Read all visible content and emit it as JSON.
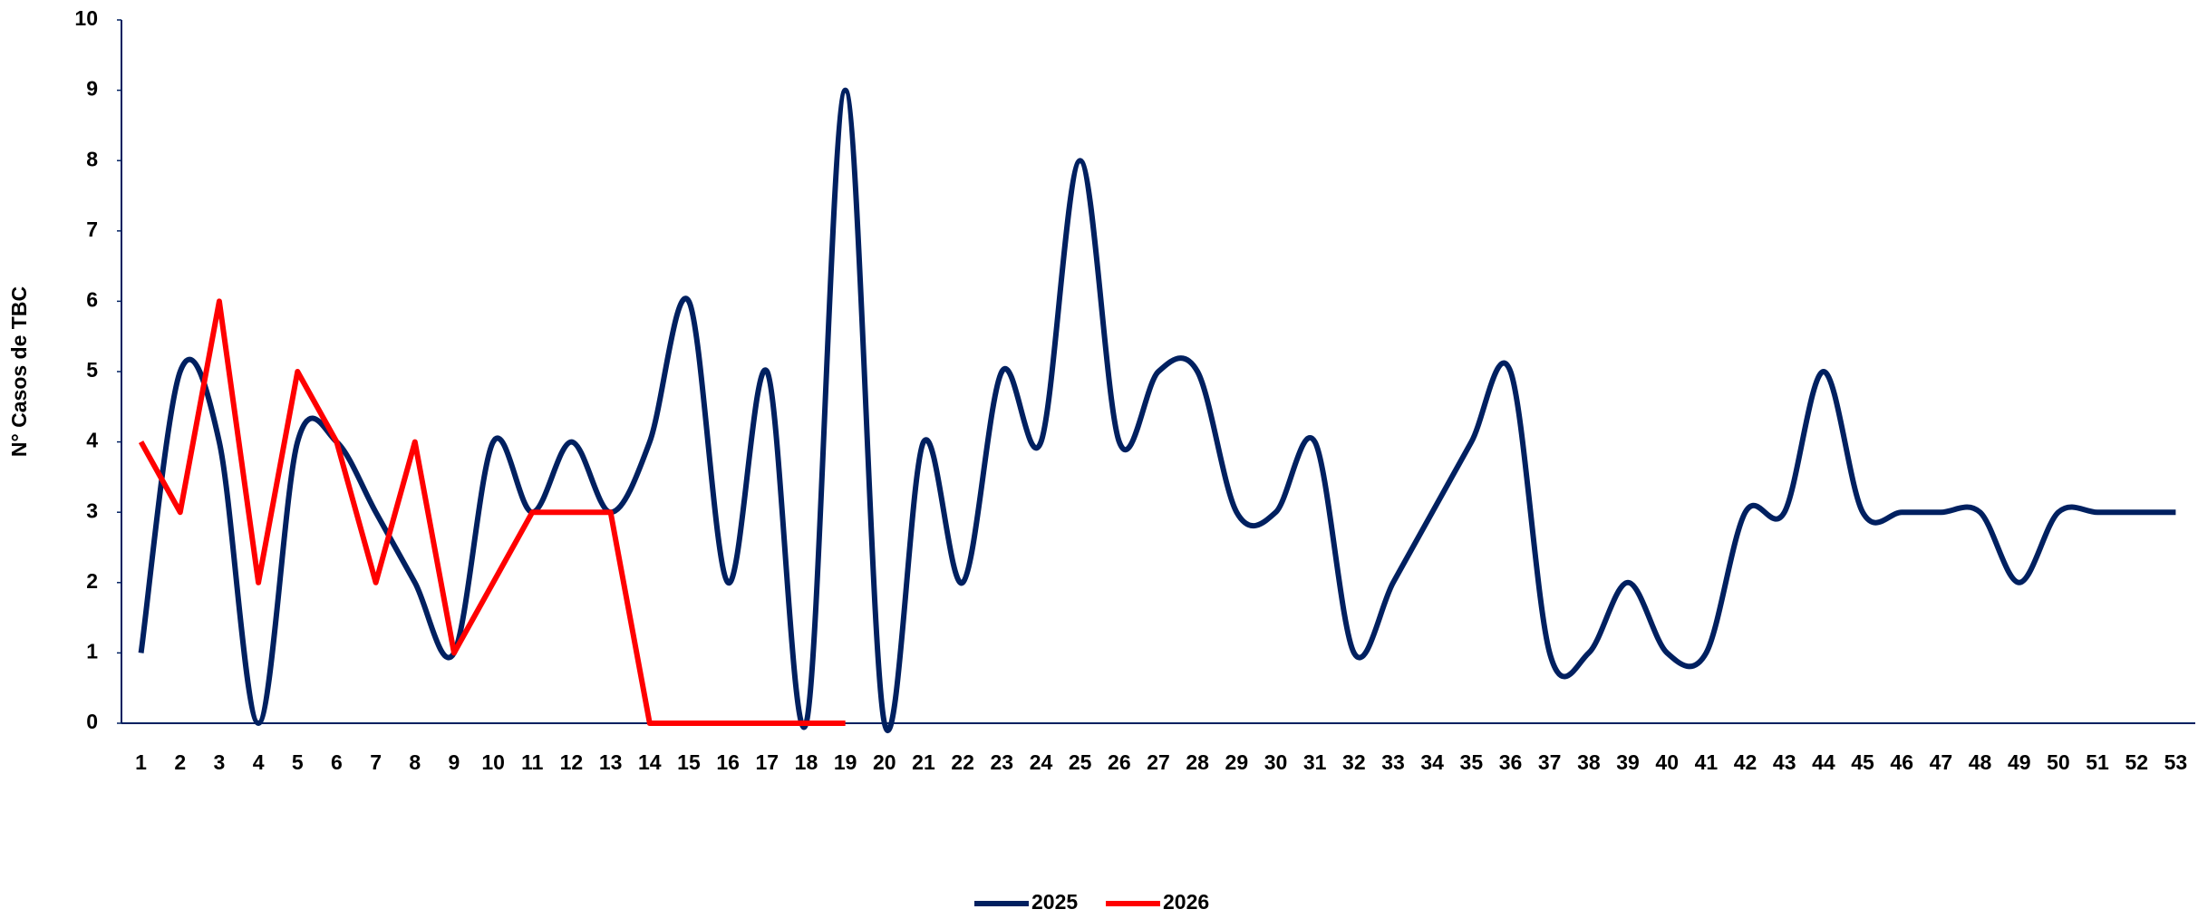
{
  "chart_data": {
    "type": "line",
    "y_label": "N° Casos de TBC",
    "categories": [
      "1",
      "2",
      "3",
      "4",
      "5",
      "6",
      "7",
      "8",
      "9",
      "10",
      "11",
      "12",
      "13",
      "14",
      "15",
      "16",
      "17",
      "18",
      "19",
      "20",
      "21",
      "22",
      "23",
      "24",
      "25",
      "26",
      "27",
      "28",
      "29",
      "30",
      "31",
      "32",
      "33",
      "34",
      "35",
      "36",
      "37",
      "38",
      "39",
      "40",
      "41",
      "42",
      "43",
      "44",
      "45",
      "46",
      "47",
      "48",
      "49",
      "50",
      "51",
      "52",
      "53"
    ],
    "series": [
      {
        "name": "2025",
        "color": "#002060",
        "smooth": true,
        "values": [
          1,
          5,
          4,
          0,
          4,
          4,
          3,
          2,
          1,
          4,
          3,
          4,
          3,
          4,
          6,
          2,
          5,
          0,
          9,
          0,
          4,
          2,
          5,
          4,
          8,
          4,
          5,
          5,
          3,
          3,
          4,
          1,
          2,
          3,
          4,
          5,
          1,
          1,
          2,
          1,
          1,
          3,
          3,
          5,
          3,
          3,
          3,
          3,
          2,
          3,
          3,
          3,
          3
        ]
      },
      {
        "name": "2026",
        "color": "#ff0000",
        "smooth": false,
        "values": [
          4,
          3,
          6,
          2,
          5,
          4,
          2,
          4,
          1,
          2,
          3,
          3,
          3,
          0,
          0,
          0,
          0,
          0,
          0,
          null,
          null,
          null,
          null,
          null,
          null,
          null,
          null,
          null,
          null,
          null,
          null,
          null,
          null,
          null,
          null,
          null,
          null,
          null,
          null,
          null,
          null,
          null,
          null,
          null,
          null,
          null,
          null,
          null,
          null,
          null,
          null,
          null,
          null
        ]
      }
    ],
    "ylim": [
      0,
      10
    ],
    "yticks": [
      0,
      1,
      2,
      3,
      4,
      5,
      6,
      7,
      8,
      9,
      10
    ],
    "grid": false,
    "legend": "bottom"
  }
}
